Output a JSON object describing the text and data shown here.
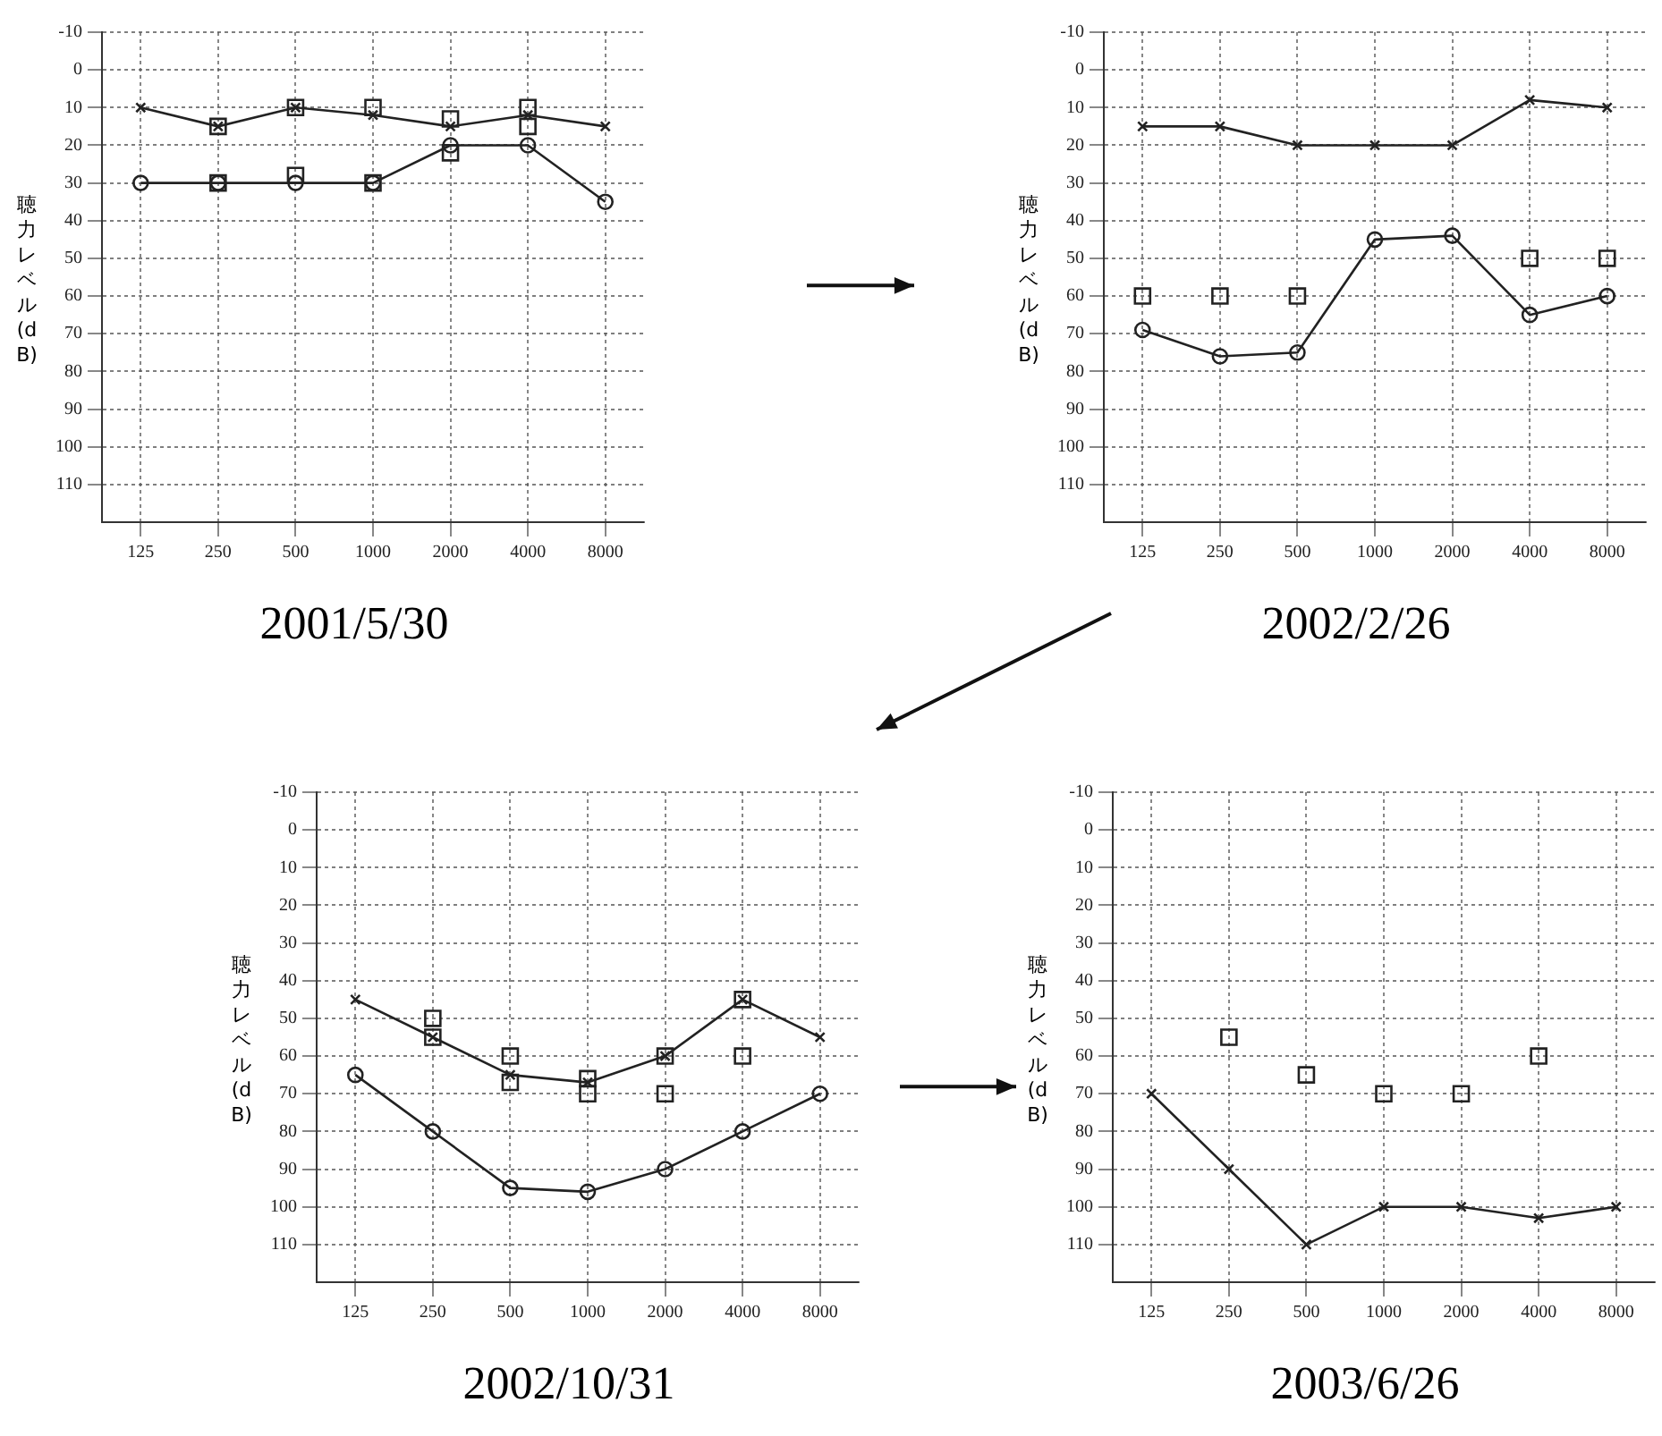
{
  "chart_data": [
    {
      "type": "line",
      "title": "2001/5/30",
      "ylabel": "聴力レベル(dB)",
      "categories": [
        "125",
        "250",
        "500",
        "1000",
        "2000",
        "4000",
        "8000"
      ],
      "ylim": [
        120,
        -10
      ],
      "yticks": [
        -10,
        0,
        10,
        20,
        30,
        40,
        50,
        60,
        70,
        80,
        90,
        100,
        110
      ],
      "grid": true,
      "legend": false,
      "series": [
        {
          "color": "#222222",
          "marker": "cross",
          "values": [
            10,
            15,
            10,
            12,
            15,
            12,
            15
          ]
        },
        {
          "color": "#222222",
          "marker": "circle",
          "values": [
            30,
            30,
            30,
            30,
            20,
            20,
            35
          ]
        },
        {
          "type": "scatter",
          "color": "#222222",
          "marker": "square",
          "values": [
            null,
            15,
            10,
            10,
            13,
            10,
            null
          ]
        },
        {
          "type": "scatter",
          "color": "#222222",
          "marker": "square",
          "values": [
            null,
            30,
            28,
            30,
            22,
            15,
            null
          ]
        }
      ]
    },
    {
      "type": "line",
      "title": "2002/2/26",
      "ylabel": "聴力レベル(dB)",
      "categories": [
        "125",
        "250",
        "500",
        "1000",
        "2000",
        "4000",
        "8000"
      ],
      "ylim": [
        120,
        -10
      ],
      "yticks": [
        -10,
        0,
        10,
        20,
        30,
        40,
        50,
        60,
        70,
        80,
        90,
        100,
        110
      ],
      "grid": true,
      "legend": false,
      "series": [
        {
          "color": "#222222",
          "marker": "cross",
          "values": [
            15,
            15,
            20,
            20,
            20,
            8,
            10
          ]
        },
        {
          "color": "#222222",
          "marker": "circle",
          "values": [
            69,
            76,
            75,
            45,
            44,
            65,
            60
          ]
        },
        {
          "type": "scatter",
          "color": "#222222",
          "marker": "square",
          "values": [
            60,
            60,
            60,
            null,
            null,
            50,
            50
          ]
        }
      ]
    },
    {
      "type": "line",
      "title": "2002/10/31",
      "ylabel": "聴力レベル(dB)",
      "categories": [
        "125",
        "250",
        "500",
        "1000",
        "2000",
        "4000",
        "8000"
      ],
      "ylim": [
        120,
        -10
      ],
      "yticks": [
        -10,
        0,
        10,
        20,
        30,
        40,
        50,
        60,
        70,
        80,
        90,
        100,
        110
      ],
      "grid": true,
      "legend": false,
      "series": [
        {
          "color": "#222222",
          "marker": "cross",
          "values": [
            45,
            55,
            65,
            67,
            60,
            45,
            55
          ]
        },
        {
          "color": "#222222",
          "marker": "circle",
          "values": [
            65,
            80,
            95,
            96,
            90,
            80,
            70
          ]
        },
        {
          "type": "scatter",
          "color": "#222222",
          "marker": "square",
          "values": [
            null,
            50,
            60,
            66,
            60,
            45,
            null
          ]
        },
        {
          "type": "scatter",
          "color": "#222222",
          "marker": "square",
          "values": [
            null,
            55,
            67,
            70,
            70,
            60,
            null
          ]
        }
      ]
    },
    {
      "type": "line",
      "title": "2003/6/26",
      "ylabel": "聴力レベル(dB)",
      "categories": [
        "125",
        "250",
        "500",
        "1000",
        "2000",
        "4000",
        "8000"
      ],
      "ylim": [
        120,
        -10
      ],
      "yticks": [
        -10,
        0,
        10,
        20,
        30,
        40,
        50,
        60,
        70,
        80,
        90,
        100,
        110
      ],
      "grid": true,
      "legend": false,
      "series": [
        {
          "color": "#222222",
          "marker": "cross",
          "values": [
            70,
            90,
            110,
            100,
            100,
            103,
            100
          ]
        },
        {
          "type": "scatter",
          "color": "#222222",
          "marker": "square",
          "values": [
            null,
            55,
            65,
            70,
            70,
            60,
            null
          ]
        }
      ]
    }
  ]
}
